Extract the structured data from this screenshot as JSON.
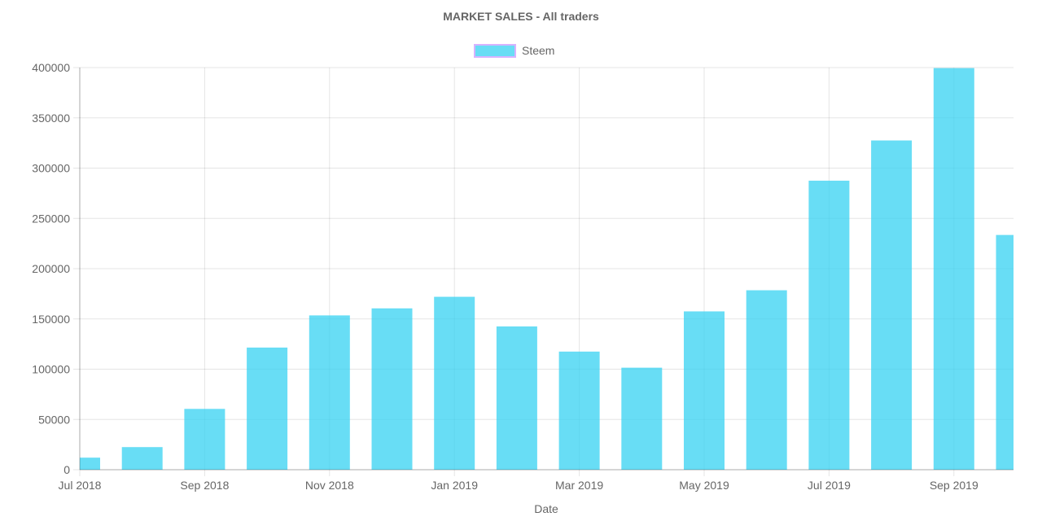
{
  "chart_data": {
    "type": "bar",
    "title": "MARKET SALES - All traders",
    "xlabel": "Date",
    "ylabel": "",
    "ylim": [
      0,
      400000
    ],
    "yticks": [
      "0",
      "50000",
      "100000",
      "150000",
      "200000",
      "250000",
      "300000",
      "350000",
      "400000"
    ],
    "ytick_values": [
      0,
      50000,
      100000,
      150000,
      200000,
      250000,
      300000,
      350000,
      400000
    ],
    "categories": [
      "2018-07",
      "2018-08",
      "2018-09",
      "2018-10",
      "2018-11",
      "2018-12",
      "2019-01",
      "2019-02",
      "2019-03",
      "2019-04",
      "2019-05",
      "2019-06",
      "2019-07",
      "2019-08",
      "2019-09",
      "2019-10"
    ],
    "xtick_labels": [
      "Jul 2018",
      "",
      "Sep 2018",
      "",
      "Nov 2018",
      "",
      "Jan 2019",
      "",
      "Mar 2019",
      "",
      "May 2019",
      "",
      "Jul 2019",
      "",
      "Sep 2019",
      ""
    ],
    "series": [
      {
        "name": "Steem",
        "color": "#36d1f2",
        "values": [
          12000,
          22500,
          60500,
          121500,
          153500,
          160500,
          172000,
          142500,
          117500,
          101500,
          157500,
          178500,
          287500,
          327500,
          399500,
          233500
        ]
      }
    ],
    "grid": true,
    "legend_position": "top"
  }
}
